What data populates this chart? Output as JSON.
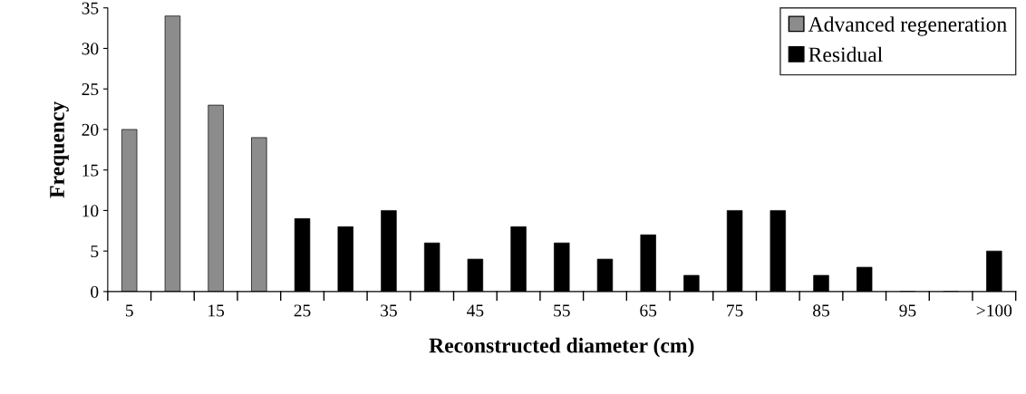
{
  "chart_data": {
    "type": "bar",
    "xlabel": "Reconstructed diameter (cm)",
    "ylabel": "Frequency",
    "categories": [
      "5",
      null,
      "15",
      null,
      "25",
      null,
      "35",
      null,
      "45",
      null,
      "55",
      null,
      "65",
      null,
      "75",
      null,
      "85",
      null,
      "95",
      null,
      ">100"
    ],
    "series": [
      {
        "name": "Advanced regeneration",
        "color": "#8c8c8c",
        "values": [
          20,
          34,
          23,
          19,
          null,
          null,
          null,
          null,
          null,
          null,
          null,
          null,
          null,
          null,
          null,
          null,
          null,
          null,
          null,
          null,
          null
        ]
      },
      {
        "name": "Residual",
        "color": "#000000",
        "values": [
          null,
          null,
          null,
          null,
          9,
          8,
          10,
          6,
          4,
          8,
          6,
          4,
          7,
          2,
          10,
          10,
          2,
          3,
          0,
          0,
          5
        ]
      }
    ],
    "ylim": [
      0,
      35
    ],
    "yticks": [
      0,
      5,
      10,
      15,
      20,
      25,
      30,
      35
    ],
    "grid": false,
    "legend": "top right"
  }
}
